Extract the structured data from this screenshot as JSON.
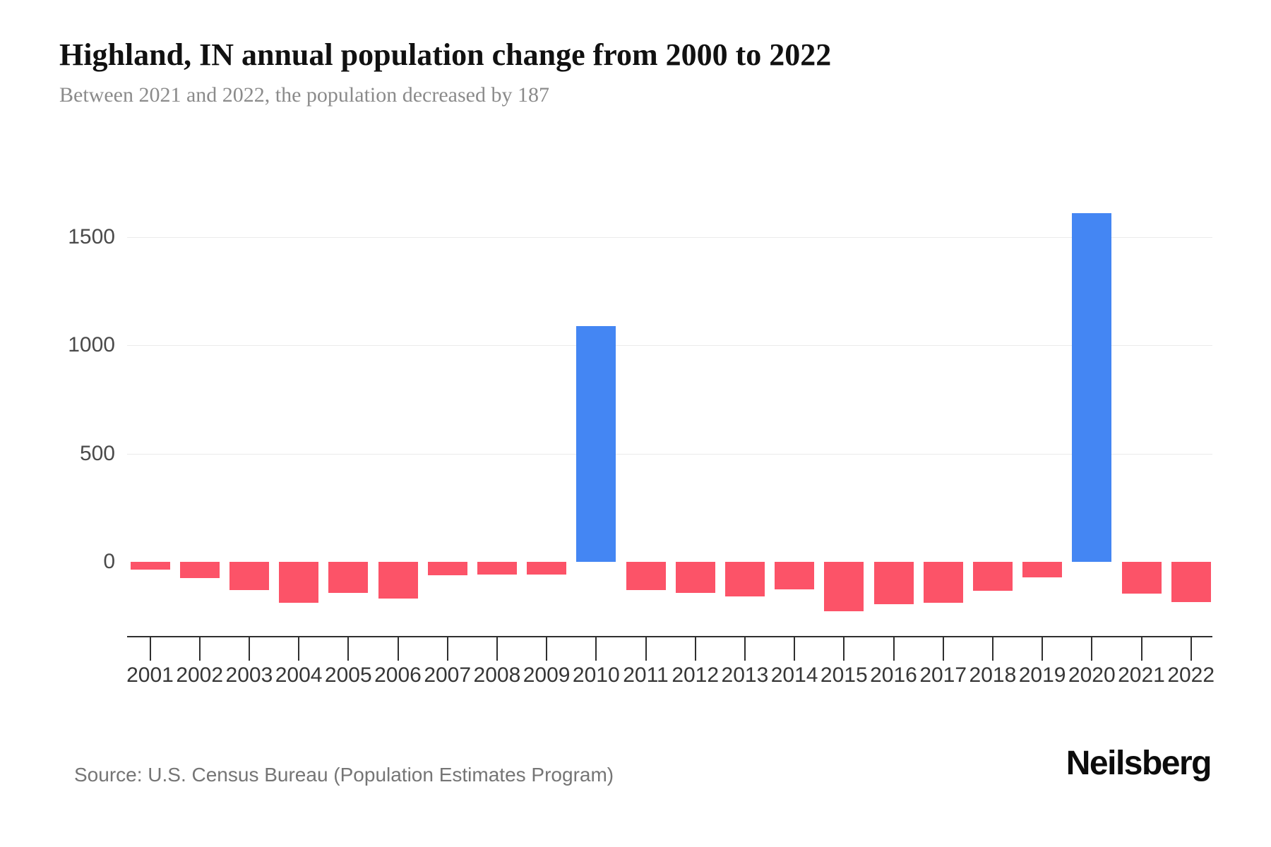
{
  "chart_data": {
    "type": "bar",
    "title": "Highland, IN annual population change from 2000 to 2022",
    "subtitle": "Between 2021 and 2022, the population decreased by 187",
    "xlabel": "",
    "ylabel": "",
    "categories": [
      "2001",
      "2002",
      "2003",
      "2004",
      "2005",
      "2006",
      "2007",
      "2008",
      "2009",
      "2010",
      "2011",
      "2012",
      "2013",
      "2014",
      "2015",
      "2016",
      "2017",
      "2018",
      "2019",
      "2020",
      "2021",
      "2022"
    ],
    "values": [
      -36,
      -75,
      -131,
      -190,
      -143,
      -169,
      -62,
      -59,
      -58,
      1089,
      -129,
      -143,
      -161,
      -126,
      -229,
      -195,
      -190,
      -135,
      -71,
      1610,
      -146,
      -187
    ],
    "yticks": [
      0,
      500,
      1000,
      1500
    ],
    "ylim": [
      -342,
      1810
    ],
    "grid": true,
    "legend": false,
    "colors": {
      "positive": "#4486F3",
      "negative": "#FC5368"
    }
  },
  "footer": {
    "source": "Source: U.S. Census Bureau (Population Estimates Program)",
    "brand": "Neilsberg"
  }
}
